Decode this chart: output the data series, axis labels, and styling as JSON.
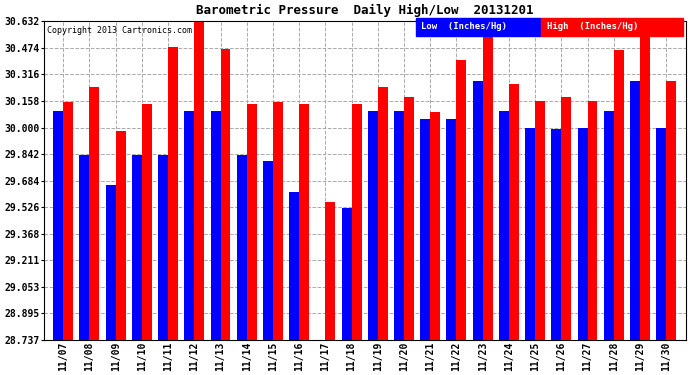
{
  "title": "Barometric Pressure  Daily High/Low  20131201",
  "copyright": "Copyright 2013 Cartronics.com",
  "legend_low": "Low  (Inches/Hg)",
  "legend_high": "High  (Inches/Hg)",
  "dates": [
    "11/07",
    "11/08",
    "11/09",
    "11/10",
    "11/11",
    "11/12",
    "11/13",
    "11/14",
    "11/15",
    "11/16",
    "11/17",
    "11/18",
    "11/19",
    "11/20",
    "11/21",
    "11/22",
    "11/23",
    "11/24",
    "11/25",
    "11/26",
    "11/27",
    "11/28",
    "11/29",
    "11/30"
  ],
  "low": [
    30.1,
    29.84,
    29.66,
    29.84,
    29.84,
    30.1,
    30.1,
    29.84,
    29.8,
    29.62,
    28.74,
    29.52,
    30.1,
    30.1,
    30.05,
    30.05,
    30.28,
    30.1,
    30.0,
    29.99,
    30.0,
    30.1,
    30.28,
    30.0
  ],
  "high": [
    30.15,
    30.24,
    29.98,
    30.14,
    30.48,
    30.63,
    30.47,
    30.14,
    30.15,
    30.14,
    29.56,
    30.14,
    30.24,
    30.18,
    30.09,
    30.4,
    30.64,
    30.26,
    30.16,
    30.18,
    30.16,
    30.46,
    30.62,
    30.28
  ],
  "ymin": 28.737,
  "ymax": 30.632,
  "yticks": [
    28.737,
    28.895,
    29.053,
    29.211,
    29.368,
    29.526,
    29.684,
    29.842,
    30.0,
    30.158,
    30.316,
    30.474,
    30.632
  ],
  "bg_color": "#ffffff",
  "plot_bg_color": "#ffffff",
  "low_color": "#0000ff",
  "high_color": "#ff0000",
  "grid_color": "#aaaaaa",
  "title_color": "#000000",
  "bar_width": 0.38,
  "figwidth": 6.9,
  "figheight": 3.75,
  "dpi": 100
}
